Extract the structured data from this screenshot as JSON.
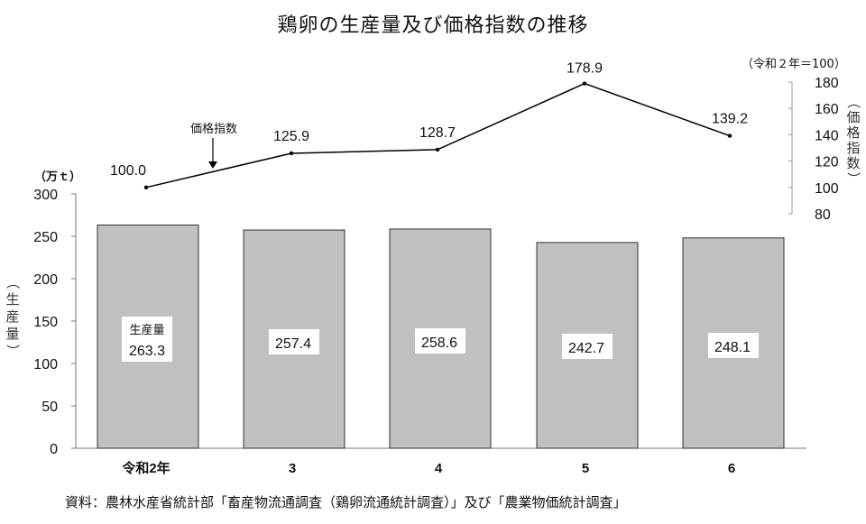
{
  "title": "鶏卵の生産量及び価格指数の推移",
  "source": "資料：農林水産省統計部「畜産物流通調査（鶏卵流通統計調査）」及び「農業物価統計調査」",
  "left_axis": {
    "unit": "（万ｔ）",
    "title_chars": [
      "（",
      "生",
      "産",
      "量",
      "）"
    ],
    "ticks": [
      "300",
      "250",
      "200",
      "150",
      "100",
      "50",
      "0"
    ]
  },
  "right_axis": {
    "unit": "（令和２年＝100）",
    "title_chars": [
      "（",
      "価",
      "格",
      "指",
      "数",
      "）"
    ],
    "ticks": [
      "180",
      "160",
      "140",
      "120",
      "100",
      "80"
    ]
  },
  "series_labels": {
    "bar": "生産量",
    "line": "価格指数"
  },
  "chart_data": {
    "type": "bar+line",
    "title": "鶏卵の生産量及び価格指数の推移",
    "categories": [
      "令和2年",
      "3",
      "4",
      "5",
      "6"
    ],
    "series": [
      {
        "name": "生産量",
        "type": "bar",
        "axis": "left",
        "unit": "万t",
        "values": [
          263.3,
          257.4,
          258.6,
          242.7,
          248.1
        ],
        "labels": [
          "263.3",
          "257.4",
          "258.6",
          "242.7",
          "248.1"
        ],
        "color": "#c0c0c0"
      },
      {
        "name": "価格指数",
        "type": "line",
        "axis": "right",
        "unit": "令和2年=100",
        "values": [
          100.0,
          125.9,
          128.7,
          178.9,
          139.2
        ],
        "labels": [
          "100.0",
          "125.9",
          "128.7",
          "178.9",
          "139.2"
        ],
        "color": "#000000"
      }
    ],
    "xlabel": "",
    "ylabel": "生産量（万t）",
    "y2label": "価格指数（令和2年=100）",
    "ylim": [
      0,
      300
    ],
    "y2lim": [
      80,
      180
    ],
    "grid": false,
    "legend": "annotation"
  }
}
